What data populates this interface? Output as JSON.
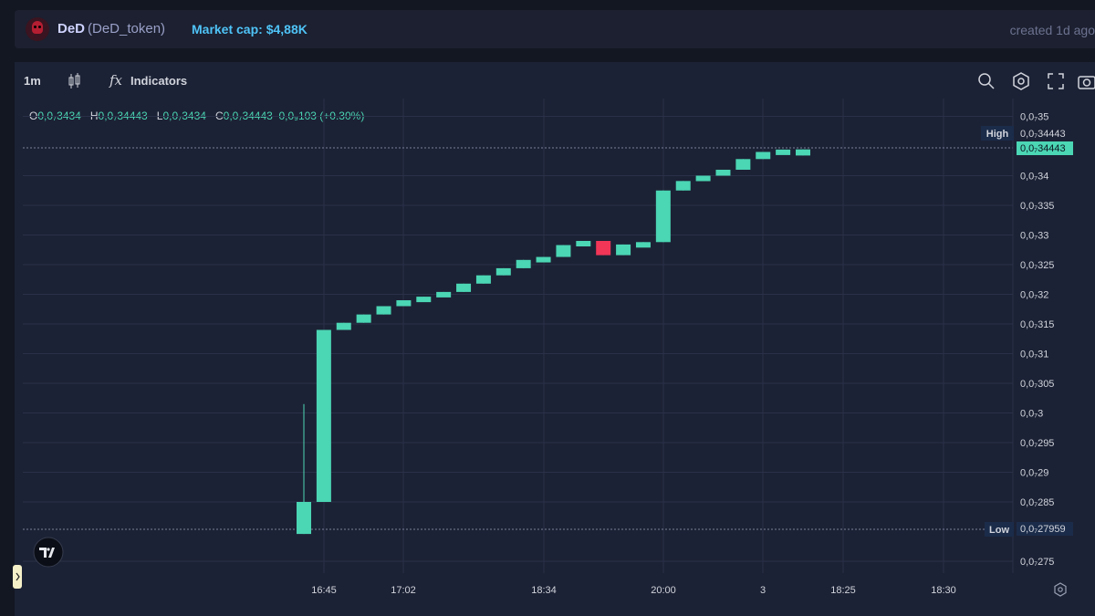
{
  "header": {
    "token_name": "DeD",
    "token_symbol": "(DeD_token)",
    "market_cap": "Market cap: $4,88K",
    "created": "created 1d ago"
  },
  "toolbar": {
    "interval": "1m",
    "indicators_label": "Indicators",
    "fx_glyph": "fx"
  },
  "legend": {
    "o_label": "O",
    "o_value": "0,0₇3434",
    "h_label": "H",
    "h_value": "0,0₇34443",
    "l_label": "L",
    "l_value": "0,0₇3434",
    "c_label": "C",
    "c_value": "0,0₇34443",
    "change": "0,0₉103 (+0.30%)"
  },
  "markers": {
    "high_label": "High",
    "high_value": "0,0₇34443",
    "current_value": "0,0₇34443",
    "low_label": "Low",
    "low_value": "0,0₇27959"
  },
  "colors": {
    "up": "#4bd6b4",
    "down": "#f23658",
    "grid": "#2a3048",
    "background": "#1c2235"
  },
  "chart_data": {
    "type": "candlestick",
    "y_unit_note": "values shown as price ×1e9 (0,0₇3 = 30)",
    "ylim": [
      27.3,
      35.3
    ],
    "y_ticks": [
      {
        "value": 35,
        "label": "0,0₇35"
      },
      {
        "value": 34,
        "label": "0,0₇34"
      },
      {
        "value": 33.5,
        "label": "0,0₇335"
      },
      {
        "value": 33,
        "label": "0,0₇33"
      },
      {
        "value": 32.5,
        "label": "0,0₇325"
      },
      {
        "value": 32,
        "label": "0,0₇32"
      },
      {
        "value": 31.5,
        "label": "0,0₇315"
      },
      {
        "value": 31,
        "label": "0,0₇31"
      },
      {
        "value": 30.5,
        "label": "0,0₇305"
      },
      {
        "value": 30,
        "label": "0,0₇3"
      },
      {
        "value": 29.5,
        "label": "0,0₇295"
      },
      {
        "value": 29,
        "label": "0,0₇29"
      },
      {
        "value": 28.5,
        "label": "0,0₇285"
      },
      {
        "value": 27.5,
        "label": "0,0₇275"
      }
    ],
    "x_ticks": [
      "16:45",
      "17:02",
      "18:34",
      "20:00",
      "3",
      "18:25",
      "18:30"
    ],
    "candles": [
      {
        "o": 27.96,
        "h": 30.15,
        "l": 27.96,
        "c": 28.5
      },
      {
        "o": 28.5,
        "h": 31.4,
        "l": 28.5,
        "c": 31.4
      },
      {
        "o": 31.4,
        "h": 31.52,
        "l": 31.4,
        "c": 31.52
      },
      {
        "o": 31.52,
        "h": 31.66,
        "l": 31.52,
        "c": 31.66
      },
      {
        "o": 31.66,
        "h": 31.8,
        "l": 31.66,
        "c": 31.8
      },
      {
        "o": 31.8,
        "h": 31.9,
        "l": 31.8,
        "c": 31.9
      },
      {
        "o": 31.9,
        "h": 31.96,
        "l": 31.9,
        "c": 31.96
      },
      {
        "o": 31.96,
        "h": 32.04,
        "l": 31.96,
        "c": 32.04
      },
      {
        "o": 32.04,
        "h": 32.18,
        "l": 32.04,
        "c": 32.18
      },
      {
        "o": 32.18,
        "h": 32.32,
        "l": 32.18,
        "c": 32.32
      },
      {
        "o": 32.32,
        "h": 32.44,
        "l": 32.32,
        "c": 32.44
      },
      {
        "o": 32.44,
        "h": 32.58,
        "l": 32.44,
        "c": 32.58
      },
      {
        "o": 32.58,
        "h": 32.63,
        "l": 32.58,
        "c": 32.63
      },
      {
        "o": 32.63,
        "h": 32.83,
        "l": 32.63,
        "c": 32.83
      },
      {
        "o": 32.83,
        "h": 32.9,
        "l": 32.83,
        "c": 32.9
      },
      {
        "o": 32.9,
        "h": 32.9,
        "l": 32.66,
        "c": 32.66
      },
      {
        "o": 32.66,
        "h": 32.84,
        "l": 32.66,
        "c": 32.84
      },
      {
        "o": 32.84,
        "h": 32.88,
        "l": 32.84,
        "c": 32.88
      },
      {
        "o": 32.88,
        "h": 33.75,
        "l": 32.88,
        "c": 33.75
      },
      {
        "o": 33.75,
        "h": 33.91,
        "l": 33.75,
        "c": 33.91
      },
      {
        "o": 33.91,
        "h": 34.0,
        "l": 33.91,
        "c": 34.0
      },
      {
        "o": 34.0,
        "h": 34.1,
        "l": 34.0,
        "c": 34.1
      },
      {
        "o": 34.1,
        "h": 34.28,
        "l": 34.1,
        "c": 34.28
      },
      {
        "o": 34.28,
        "h": 34.4,
        "l": 34.28,
        "c": 34.4
      },
      {
        "o": 34.4,
        "h": 34.44,
        "l": 34.4,
        "c": 34.44
      },
      {
        "o": 34.34,
        "h": 34.443,
        "l": 34.34,
        "c": 34.443
      }
    ]
  }
}
